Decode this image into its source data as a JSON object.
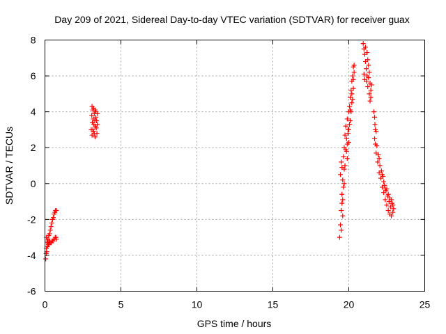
{
  "chart_data": {
    "type": "scatter",
    "title": "Day 209 of 2021, Sidereal Day-to-day VTEC variation (SDTVAR) for receiver guax",
    "xlabel": "GPS time / hours",
    "ylabel": "SDTVAR / TECUs",
    "xlim": [
      0,
      25
    ],
    "ylim": [
      -6,
      8
    ],
    "xticks": [
      "0",
      "5",
      "10",
      "15",
      "20",
      "25"
    ],
    "yticks": [
      "-6",
      "-4",
      "-2",
      "0",
      "2",
      "4",
      "6",
      "8"
    ],
    "grid": true,
    "marker": "+",
    "color": "#ff0000",
    "series": [
      {
        "points": [
          [
            0.05,
            -4.2
          ],
          [
            0.08,
            -3.9
          ],
          [
            0.1,
            -3.6
          ],
          [
            0.12,
            -3.8
          ],
          [
            0.15,
            -3.3
          ],
          [
            0.18,
            -3.5
          ],
          [
            0.2,
            -3.1
          ],
          [
            0.22,
            -3.4
          ],
          [
            0.25,
            -2.9
          ],
          [
            0.28,
            -3.2
          ],
          [
            0.3,
            -2.8
          ],
          [
            0.32,
            -3.3
          ],
          [
            0.35,
            -2.6
          ],
          [
            0.38,
            -3.3
          ],
          [
            0.4,
            -2.4
          ],
          [
            0.42,
            -3.3
          ],
          [
            0.45,
            -2.2
          ],
          [
            0.48,
            -3.2
          ],
          [
            0.5,
            -2.0
          ],
          [
            0.52,
            -3.2
          ],
          [
            0.55,
            -1.9
          ],
          [
            0.58,
            -3.1
          ],
          [
            0.6,
            -1.7
          ],
          [
            0.62,
            -3.1
          ],
          [
            0.65,
            -1.6
          ],
          [
            0.68,
            -3.0
          ],
          [
            0.7,
            -1.5
          ],
          [
            0.72,
            -3.0
          ],
          [
            0.75,
            -1.5
          ],
          [
            0.75,
            -3.1
          ],
          [
            0.1,
            -3.0
          ],
          [
            0.15,
            -3.2
          ],
          [
            0.2,
            -3.3
          ],
          [
            0.25,
            -3.4
          ],
          [
            0.3,
            -3.2
          ]
        ]
      },
      {
        "points": [
          [
            3.05,
            3.0
          ],
          [
            3.08,
            3.8
          ],
          [
            3.1,
            4.3
          ],
          [
            3.1,
            2.7
          ],
          [
            3.12,
            3.4
          ],
          [
            3.15,
            4.1
          ],
          [
            3.15,
            3.0
          ],
          [
            3.18,
            3.6
          ],
          [
            3.2,
            2.9
          ],
          [
            3.2,
            4.2
          ],
          [
            3.22,
            3.3
          ],
          [
            3.25,
            3.9
          ],
          [
            3.25,
            2.8
          ],
          [
            3.28,
            3.5
          ],
          [
            3.3,
            4.1
          ],
          [
            3.3,
            2.6
          ],
          [
            3.32,
            3.2
          ],
          [
            3.35,
            3.7
          ],
          [
            3.35,
            4.0
          ],
          [
            3.38,
            3.1
          ],
          [
            3.4,
            3.5
          ],
          [
            3.42,
            2.8
          ],
          [
            3.45,
            3.9
          ],
          [
            3.45,
            3.3
          ]
        ]
      },
      {
        "points": [
          [
            19.4,
            -3.0
          ],
          [
            19.45,
            -2.3
          ],
          [
            19.5,
            -1.5
          ],
          [
            19.5,
            1.2
          ],
          [
            19.55,
            -0.6
          ],
          [
            19.55,
            0.9
          ],
          [
            19.6,
            0.2
          ],
          [
            19.6,
            -1.8
          ],
          [
            19.65,
            1.5
          ],
          [
            19.7,
            0.8
          ],
          [
            19.7,
            2.0
          ],
          [
            19.75,
            2.7
          ],
          [
            19.8,
            1.9
          ],
          [
            19.8,
            3.2
          ],
          [
            19.85,
            2.5
          ],
          [
            19.9,
            3.6
          ],
          [
            19.9,
            1.4
          ],
          [
            19.95,
            3.0
          ],
          [
            20.0,
            4.0
          ],
          [
            20.0,
            2.3
          ],
          [
            20.05,
            4.3
          ],
          [
            20.1,
            3.5
          ],
          [
            20.1,
            4.8
          ],
          [
            20.15,
            5.2
          ],
          [
            20.2,
            4.5
          ],
          [
            20.2,
            5.7
          ],
          [
            20.25,
            6.0
          ],
          [
            20.3,
            5.3
          ],
          [
            20.3,
            6.5
          ],
          [
            20.35,
            6.2
          ],
          [
            19.6,
            -0.9
          ],
          [
            19.65,
            -0.2
          ],
          [
            19.75,
            1.0
          ],
          [
            19.85,
            1.8
          ],
          [
            19.95,
            2.8
          ],
          [
            20.05,
            3.3
          ],
          [
            20.15,
            4.0
          ],
          [
            20.25,
            4.7
          ],
          [
            20.3,
            5.8
          ],
          [
            19.5,
            -2.6
          ],
          [
            19.45,
            0.5
          ],
          [
            19.55,
            -1.1
          ],
          [
            19.7,
            0.0
          ],
          [
            19.9,
            2.2
          ],
          [
            20.0,
            3.0
          ],
          [
            20.1,
            4.1
          ],
          [
            20.2,
            5.0
          ],
          [
            20.35,
            6.6
          ]
        ]
      },
      {
        "points": [
          [
            20.95,
            7.8
          ],
          [
            21.0,
            7.5
          ],
          [
            21.0,
            6.1
          ],
          [
            21.05,
            7.2
          ],
          [
            21.05,
            5.8
          ],
          [
            21.1,
            6.8
          ],
          [
            21.1,
            7.6
          ],
          [
            21.15,
            6.4
          ],
          [
            21.15,
            5.7
          ],
          [
            21.2,
            7.3
          ],
          [
            21.2,
            6.0
          ],
          [
            21.25,
            6.9
          ],
          [
            21.25,
            5.4
          ],
          [
            21.3,
            6.6
          ],
          [
            21.3,
            5.9
          ],
          [
            21.35,
            6.2
          ],
          [
            21.35,
            5.0
          ],
          [
            21.4,
            5.6
          ],
          [
            21.4,
            4.6
          ],
          [
            21.45,
            5.2
          ],
          [
            21.45,
            4.8
          ],
          [
            21.5,
            5.5
          ],
          [
            21.65,
            4.0
          ],
          [
            21.7,
            3.7
          ],
          [
            21.72,
            3.3
          ],
          [
            21.75,
            3.0
          ],
          [
            21.7,
            2.5
          ],
          [
            21.75,
            2.2
          ],
          [
            21.8,
            2.9
          ],
          [
            21.8,
            1.7
          ],
          [
            21.85,
            2.1
          ],
          [
            21.9,
            1.2
          ],
          [
            21.95,
            1.6
          ],
          [
            22.0,
            0.6
          ],
          [
            22.05,
            1.0
          ],
          [
            22.1,
            0.3
          ],
          [
            22.15,
            0.7
          ],
          [
            22.2,
            -0.2
          ],
          [
            22.25,
            0.4
          ],
          [
            22.3,
            -0.5
          ],
          [
            22.35,
            -0.1
          ],
          [
            22.4,
            -0.9
          ],
          [
            22.45,
            -0.4
          ],
          [
            22.5,
            -1.2
          ],
          [
            22.55,
            -0.7
          ],
          [
            22.6,
            -1.5
          ],
          [
            22.65,
            -1.0
          ],
          [
            22.7,
            -1.7
          ],
          [
            22.75,
            -1.3
          ],
          [
            22.8,
            -1.8
          ],
          [
            22.85,
            -1.1
          ],
          [
            22.9,
            -1.6
          ],
          [
            22.95,
            -1.4
          ],
          [
            22.5,
            -0.3
          ],
          [
            22.6,
            -0.6
          ],
          [
            22.7,
            -0.8
          ],
          [
            22.8,
            -0.9
          ],
          [
            22.9,
            -1.2
          ],
          [
            22.3,
            0.1
          ],
          [
            22.4,
            -0.3
          ],
          [
            22.2,
            0.5
          ],
          [
            22.0,
            1.4
          ]
        ]
      }
    ]
  }
}
